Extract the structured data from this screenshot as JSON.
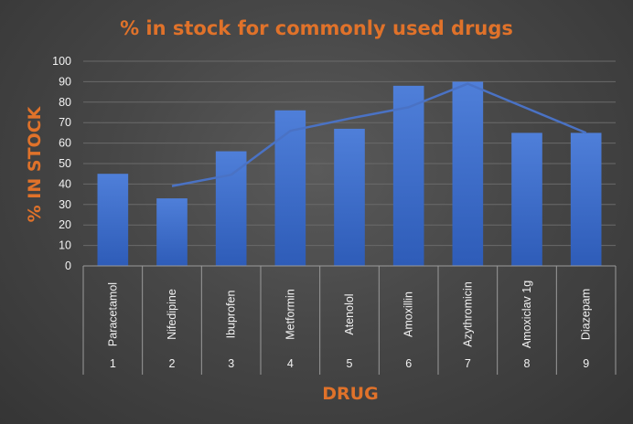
{
  "chart_data": {
    "type": "bar",
    "title": "% in stock for commonly used drugs",
    "xlabel": "DRUG",
    "ylabel": "% IN STOCK",
    "categories": [
      "Paracetamol",
      "Nifedipine",
      "Ibuprofen",
      "Metformin",
      "Atenolol",
      "Amoxillin",
      "Azythromicin",
      "Amoxiclav 1g",
      "Diazepam"
    ],
    "category_numbers": [
      "1",
      "2",
      "3",
      "4",
      "5",
      "6",
      "7",
      "8",
      "9"
    ],
    "series": [
      {
        "values": [
          45,
          33,
          56,
          76,
          67,
          88,
          90,
          65,
          65
        ]
      }
    ],
    "trendline": {
      "type": "line",
      "values": [
        null,
        39,
        44.5,
        66,
        72,
        77.5,
        89,
        77,
        65
      ]
    },
    "ylim": [
      0,
      100
    ],
    "yticks": [
      0,
      10,
      20,
      30,
      40,
      50,
      60,
      70,
      80,
      90,
      100
    ],
    "grid": true,
    "legend": "none",
    "colors": {
      "bar_top": "#4f7fd9",
      "bar_bottom": "#2e5cb8",
      "line": "#4a72c4",
      "title": "#e0722a",
      "axis_title": "#e0722a",
      "gridline": "#6a6a6a"
    }
  }
}
